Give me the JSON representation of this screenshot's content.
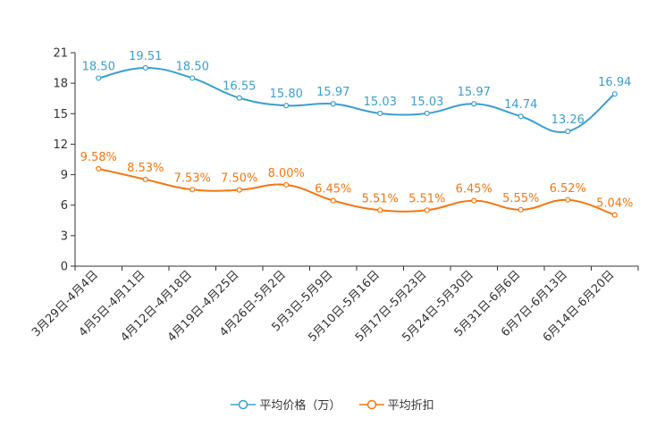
{
  "chart_data": {
    "type": "line",
    "categories": [
      "3月29日-4月4日",
      "4月5日-4月11日",
      "4月12日-4月18日",
      "4月19日-4月25日",
      "4月26日-5月2日",
      "5月3日-5月9日",
      "5月10日-5月16日",
      "5月17日-5月23日",
      "5月24日-5月30日",
      "5月31日-6月6日",
      "6月7日-6月13日",
      "6月14日-6月20日"
    ],
    "ylim": [
      0,
      21
    ],
    "yticks": [
      0,
      3,
      6,
      9,
      12,
      15,
      18,
      21
    ],
    "series": [
      {
        "name": "平均价格（万）",
        "color": "#3a9fd1",
        "values": [
          18.5,
          19.51,
          18.5,
          16.55,
          15.8,
          15.97,
          15.03,
          15.03,
          15.97,
          14.74,
          13.26,
          16.94
        ],
        "labels": [
          "18.50",
          "19.51",
          "18.50",
          "16.55",
          "15.80",
          "15.97",
          "15.03",
          "15.03",
          "15.97",
          "14.74",
          "13.26",
          "16.94"
        ]
      },
      {
        "name": "平均折扣",
        "color": "#f5760f",
        "values": [
          9.58,
          8.53,
          7.53,
          7.5,
          8.0,
          6.45,
          5.51,
          5.51,
          6.45,
          5.55,
          6.52,
          5.04
        ],
        "labels": [
          "9.58%",
          "8.53%",
          "7.53%",
          "7.50%",
          "8.00%",
          "6.45%",
          "5.51%",
          "5.51%",
          "6.45%",
          "5.55%",
          "6.52%",
          "5.04%"
        ]
      }
    ],
    "legend_position": "bottom-center"
  }
}
